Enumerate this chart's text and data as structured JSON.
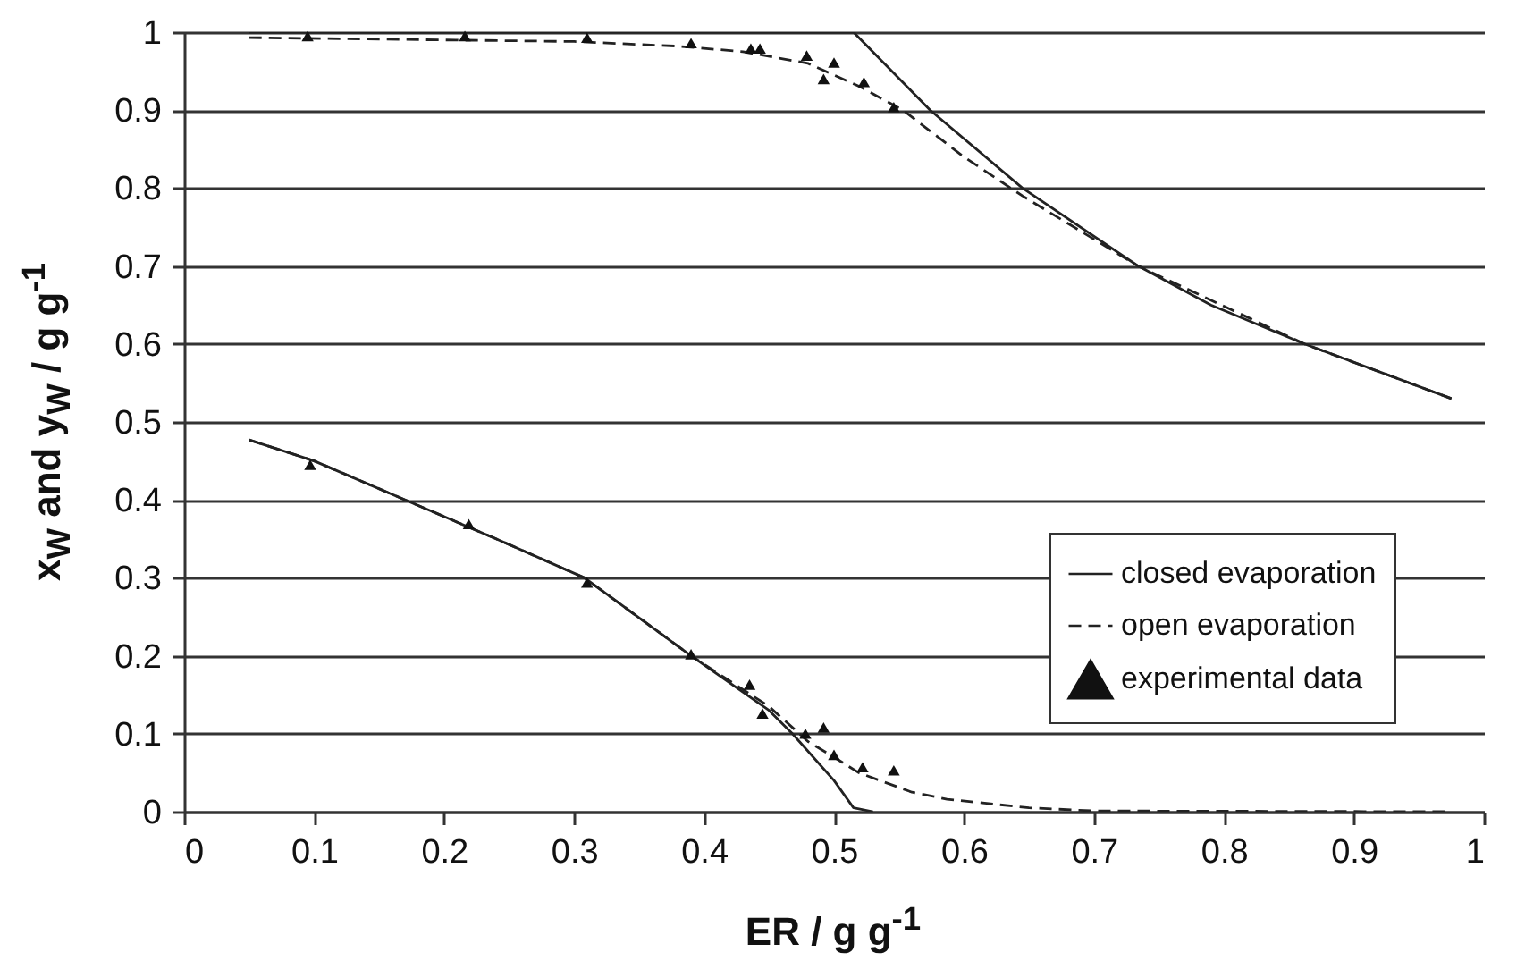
{
  "chart_data": {
    "type": "line",
    "xlabel": "ER / g g$^{-1}$",
    "ylabel": "x$_{W}$ and y$_{W}$ / g g$^{-1}$",
    "xlim": [
      0,
      1
    ],
    "ylim": [
      0,
      1
    ],
    "xticks": [
      0,
      0.1,
      0.2,
      0.3,
      0.4,
      0.5,
      0.6,
      0.7,
      0.8,
      0.9,
      1
    ],
    "yticks": [
      0,
      0.1,
      0.2,
      0.3,
      0.4,
      0.5,
      0.6,
      0.7,
      0.8,
      0.9,
      1
    ],
    "grid": "y",
    "legend": "bottom right",
    "series": [
      {
        "name": "closed evaporation",
        "line_style": "solid",
        "color": "#222222",
        "x": [
          0.05,
          0.515,
          0.574,
          0.645,
          0.734,
          0.79,
          0.862,
          0.975
        ],
        "values": [
          1.0,
          1.0,
          0.9,
          0.8,
          0.7,
          0.65,
          0.6,
          0.53
        ]
      },
      {
        "name": "open evaporation",
        "line_style": "dashed",
        "color": "#222222",
        "x": [
          0.05,
          0.2,
          0.3,
          0.38,
          0.43,
          0.48,
          0.52,
          0.553,
          0.6,
          0.645,
          0.734,
          0.862,
          0.975
        ],
        "values": [
          0.993,
          0.99,
          0.988,
          0.982,
          0.975,
          0.96,
          0.93,
          0.9,
          0.84,
          0.79,
          0.7,
          0.6,
          0.53
        ]
      },
      {
        "line_style": "solid",
        "color": "#222222",
        "x": [
          0.05,
          0.1,
          0.17,
          0.24,
          0.308,
          0.39,
          0.45,
          0.468,
          0.5,
          0.515,
          0.53
        ],
        "values": [
          0.477,
          0.45,
          0.4,
          0.35,
          0.3,
          0.2,
          0.13,
          0.1,
          0.04,
          0.005,
          0
        ]
      },
      {
        "line_style": "dashed",
        "color": "#222222",
        "x": [
          0.05,
          0.1,
          0.17,
          0.24,
          0.308,
          0.39,
          0.45,
          0.48,
          0.5,
          0.519,
          0.56,
          0.587,
          0.65,
          0.7,
          0.975
        ],
        "values": [
          0.477,
          0.45,
          0.4,
          0.35,
          0.3,
          0.2,
          0.135,
          0.09,
          0.07,
          0.05,
          0.025,
          0.016,
          0.005,
          0.001,
          0
        ]
      },
      {
        "name": "experimental data",
        "type": "scatter",
        "marker": "triangle",
        "color": "#111111",
        "x": [
          0.095,
          0.216,
          0.31,
          0.39,
          0.436,
          0.443,
          0.479,
          0.492,
          0.5,
          0.523,
          0.546,
          0.097,
          0.219,
          0.31,
          0.39,
          0.435,
          0.445,
          0.478,
          0.492,
          0.5,
          0.522,
          0.546
        ],
        "values": [
          0.995,
          0.995,
          0.993,
          0.986,
          0.979,
          0.979,
          0.97,
          0.94,
          0.961,
          0.936,
          0.904,
          0.445,
          0.369,
          0.294,
          0.202,
          0.163,
          0.126,
          0.1,
          0.108,
          0.073,
          0.057,
          0.053
        ]
      }
    ]
  }
}
